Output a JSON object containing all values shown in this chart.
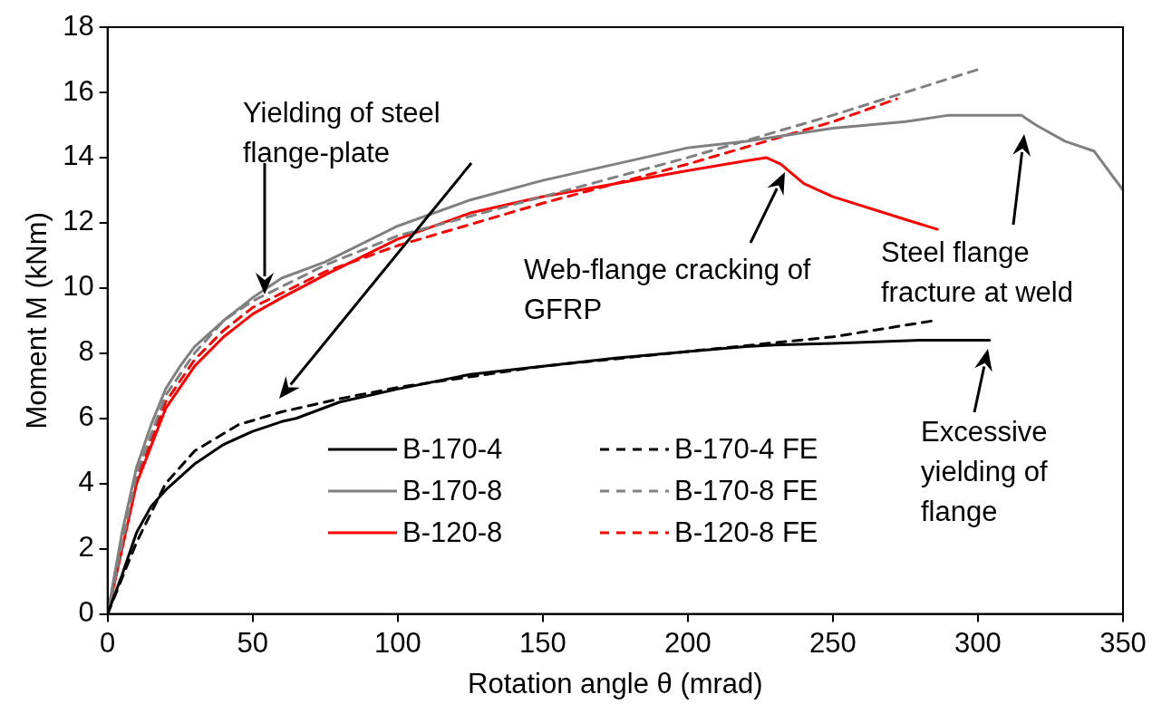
{
  "chart_data": {
    "type": "line",
    "xlabel": "Rotation angle θ (mrad)",
    "ylabel": "Moment M (kNm)",
    "xlim": [
      0,
      350
    ],
    "xticks": [
      0,
      50,
      100,
      150,
      200,
      250,
      300,
      350
    ],
    "ylim": [
      0,
      18
    ],
    "yticks": [
      0,
      2,
      4,
      6,
      8,
      10,
      12,
      14,
      16,
      18
    ],
    "legend": "bottom",
    "marker": "none",
    "annotations": [
      "Yielding of steel flange-plate",
      "Web-flange cracking of GFRP",
      "Steel flange fracture at weld",
      "Excessive yielding of flange"
    ],
    "series": [
      {
        "name": "B-170-4",
        "color": "#000000",
        "line_style": "solid",
        "x": [
          0,
          5,
          10,
          15,
          20,
          30,
          40,
          50,
          60,
          65,
          80,
          100,
          125,
          150,
          175,
          200,
          220,
          230,
          250,
          280,
          304
        ],
        "values": [
          0,
          1.2,
          2.5,
          3.3,
          3.8,
          4.6,
          5.2,
          5.6,
          5.9,
          6.0,
          6.5,
          6.9,
          7.35,
          7.6,
          7.85,
          8.05,
          8.2,
          8.25,
          8.3,
          8.4,
          8.4
        ]
      },
      {
        "name": "B-170-4 FE",
        "color": "#000000",
        "line_style": "dashed",
        "x": [
          0,
          10,
          20,
          30,
          45,
          60,
          80,
          100,
          150,
          200,
          250,
          285
        ],
        "values": [
          0,
          2.2,
          4.0,
          5.0,
          5.8,
          6.2,
          6.6,
          6.95,
          7.6,
          8.05,
          8.5,
          9.0
        ]
      },
      {
        "name": "B-170-8",
        "color": "#808080",
        "line_style": "solid",
        "x": [
          0,
          5,
          10,
          15,
          20,
          25,
          30,
          40,
          50,
          60,
          75,
          100,
          125,
          150,
          175,
          200,
          220,
          250,
          275,
          290,
          300,
          315,
          320,
          330,
          340,
          350
        ],
        "values": [
          0,
          2.5,
          4.5,
          5.8,
          6.9,
          7.6,
          8.2,
          9.0,
          9.7,
          10.3,
          10.8,
          11.9,
          12.7,
          13.3,
          13.8,
          14.3,
          14.5,
          14.9,
          15.1,
          15.3,
          15.3,
          15.3,
          15.0,
          14.5,
          14.2,
          13.0
        ]
      },
      {
        "name": "B-170-8 FE",
        "color": "#808080",
        "line_style": "dashed",
        "x": [
          0,
          10,
          20,
          30,
          40,
          50,
          75,
          100,
          150,
          200,
          250,
          300
        ],
        "values": [
          0,
          4.3,
          6.7,
          8.0,
          9.0,
          9.6,
          10.7,
          11.6,
          12.8,
          14.0,
          15.3,
          16.7
        ]
      },
      {
        "name": "B-120-8",
        "color": "#ff0000",
        "line_style": "solid",
        "x": [
          0,
          10,
          20,
          30,
          40,
          50,
          60,
          75,
          100,
          125,
          150,
          175,
          200,
          220,
          227,
          232,
          240,
          250,
          275,
          286
        ],
        "values": [
          0,
          4.0,
          6.3,
          7.6,
          8.5,
          9.2,
          9.7,
          10.4,
          11.5,
          12.3,
          12.8,
          13.2,
          13.6,
          13.9,
          14.0,
          13.8,
          13.2,
          12.8,
          12.1,
          11.8
        ]
      },
      {
        "name": "B-120-8 FE",
        "color": "#ff0000",
        "line_style": "dashed",
        "x": [
          0,
          10,
          20,
          30,
          40,
          50,
          75,
          100,
          150,
          200,
          250,
          272
        ],
        "values": [
          0,
          4.1,
          6.5,
          7.8,
          8.7,
          9.4,
          10.5,
          11.3,
          12.6,
          13.8,
          15.1,
          15.8
        ]
      }
    ]
  }
}
